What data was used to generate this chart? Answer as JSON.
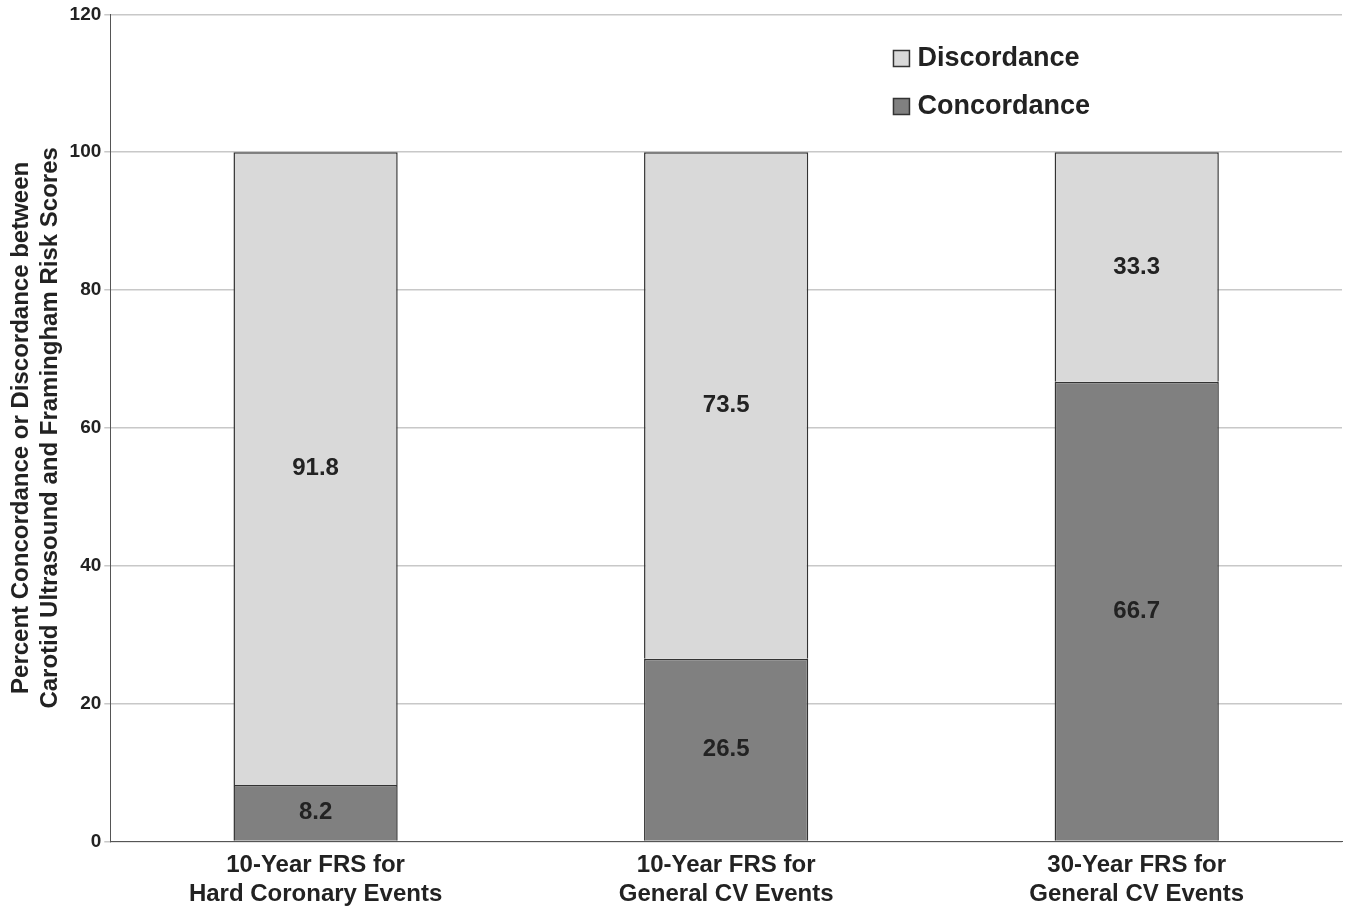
{
  "chart_data": {
    "type": "bar",
    "stacked": true,
    "ylabel": "Percent Concordance or Discordance between\nCarotid Ultrasound and Framingham Risk Scores",
    "categories": [
      "10-Year FRS for Hard Coronary Events",
      "10-Year FRS for General CV Events",
      "30-Year FRS for General CV Events"
    ],
    "series": [
      {
        "name": "Concordance",
        "color": "#808080",
        "values": [
          8.2,
          26.5,
          66.7
        ]
      },
      {
        "name": "Discordance",
        "color": "#d9d9d9",
        "values": [
          91.8,
          73.5,
          33.3
        ]
      }
    ],
    "ylim": [
      0,
      120
    ],
    "yticks": [
      0,
      20,
      40,
      60,
      80,
      100,
      120
    ],
    "grid": "y",
    "legend": "top right",
    "data_labels": true
  }
}
